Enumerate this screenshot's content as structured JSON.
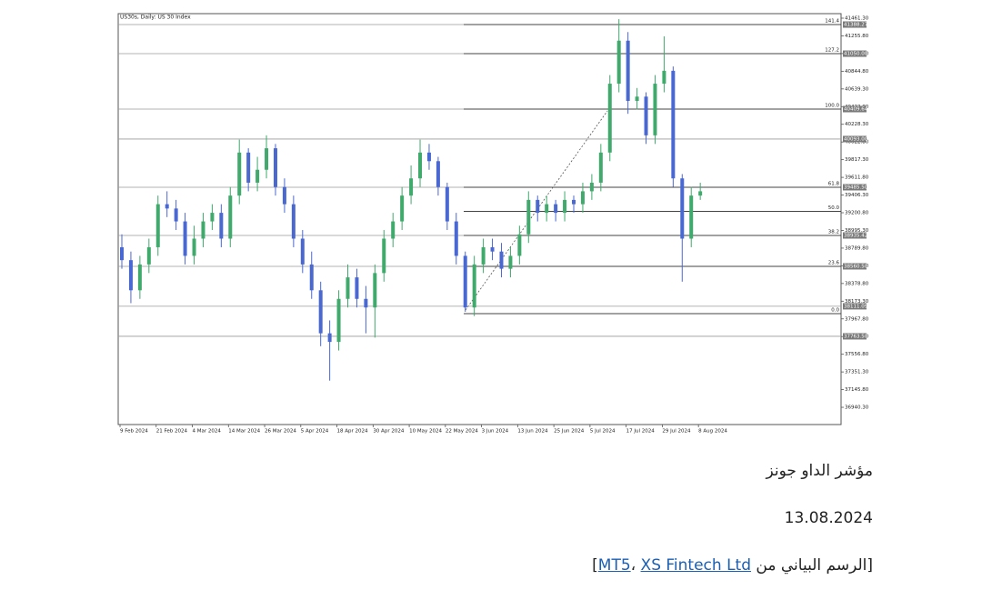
{
  "chart_data": {
    "type": "candlestick",
    "title": "US30s, Daily: US 30 Index",
    "categories": [
      "9 Feb 2024",
      null,
      null,
      null,
      "21 Feb 2024",
      null,
      null,
      null,
      "4 Mar 2024",
      null,
      null,
      null,
      "14 Mar 2024",
      null,
      null,
      null,
      "26 Mar 2024",
      null,
      null,
      null,
      "5 Apr 2024",
      null,
      null,
      null,
      "18 Apr 2024",
      null,
      null,
      null,
      "30 Apr 2024",
      null,
      null,
      null,
      "10 May 2024",
      null,
      null,
      null,
      "22 May 2024",
      null,
      null,
      null,
      "3 Jun 2024",
      null,
      null,
      null,
      "13 Jun 2024",
      null,
      null,
      null,
      "25 Jun 2024",
      null,
      null,
      null,
      "5 Jul 2024",
      null,
      null,
      null,
      "17 Jul 2024",
      null,
      null,
      null,
      "29 Jul 2024",
      null,
      null,
      null,
      "8 Aug 2024"
    ],
    "open": [
      38800,
      38650,
      38300,
      38600,
      38800,
      39300,
      39250,
      39100,
      38700,
      38900,
      39100,
      39200,
      38900,
      39400,
      39900,
      39550,
      39700,
      39950,
      39500,
      39300,
      38900,
      38600,
      38300,
      37800,
      37700,
      38200,
      38450,
      38200,
      38100,
      38500,
      38900,
      39100,
      39400,
      39600,
      39900,
      39800,
      39500,
      39100,
      38700,
      38100,
      38600,
      38800,
      38750,
      38550,
      38700,
      38950,
      39350,
      39200,
      39300,
      39200,
      39350,
      39300,
      39450,
      39550,
      39900,
      40700,
      41200,
      40500,
      40550,
      40100,
      40700,
      40850,
      39600,
      38900,
      39400
    ],
    "high": [
      38950,
      38750,
      38700,
      38900,
      39400,
      39450,
      39350,
      39200,
      39050,
      39200,
      39300,
      39300,
      39500,
      40050,
      39950,
      39850,
      40100,
      40000,
      39600,
      39400,
      39000,
      38750,
      38400,
      37950,
      38300,
      38600,
      38550,
      38350,
      38600,
      39000,
      39200,
      39500,
      39750,
      40050,
      40000,
      39850,
      39550,
      39200,
      38750,
      38700,
      38900,
      38900,
      38850,
      38800,
      39050,
      39450,
      39400,
      39400,
      39350,
      39450,
      39400,
      39550,
      39650,
      40000,
      40800,
      41450,
      41300,
      40650,
      40600,
      40800,
      41250,
      40900,
      39650,
      39500,
      39550
    ],
    "low": [
      38550,
      38150,
      38200,
      38500,
      38700,
      39150,
      39000,
      38600,
      38600,
      38800,
      39000,
      38800,
      38800,
      39300,
      39450,
      39450,
      39600,
      39400,
      39200,
      38800,
      38500,
      38200,
      37650,
      37250,
      37600,
      38100,
      38100,
      37800,
      37750,
      38400,
      38800,
      39000,
      39300,
      39500,
      39700,
      39400,
      39000,
      38600,
      38050,
      38000,
      38500,
      38650,
      38450,
      38450,
      38600,
      38850,
      39100,
      39100,
      39100,
      39100,
      39200,
      39200,
      39350,
      39450,
      39800,
      40600,
      40350,
      40400,
      40000,
      40000,
      40600,
      39500,
      38400,
      38800,
      39350
    ],
    "close": [
      38650,
      38300,
      38600,
      38800,
      39300,
      39250,
      39100,
      38700,
      38900,
      39100,
      39200,
      38900,
      39400,
      39900,
      39550,
      39700,
      39950,
      39500,
      39300,
      38900,
      38600,
      38300,
      37800,
      37700,
      38200,
      38450,
      38200,
      38100,
      38500,
      38900,
      39100,
      39400,
      39600,
      39900,
      39800,
      39500,
      39100,
      38700,
      38100,
      38600,
      38800,
      38750,
      38550,
      38700,
      38950,
      39350,
      39200,
      39300,
      39200,
      39350,
      39300,
      39450,
      39550,
      39900,
      40700,
      41200,
      40500,
      40550,
      40100,
      40700,
      40850,
      39600,
      38900,
      39400,
      39450
    ],
    "up_color": "#3faa6c",
    "down_color": "#4a68d2",
    "ylim": [
      36740,
      41514
    ],
    "yticks": [
      {
        "value": 41461.3,
        "label": "41461.30"
      },
      {
        "value": 41255.8,
        "label": "41255.80"
      },
      {
        "value": 41050.3,
        "label": "41050.30"
      },
      {
        "value": 40844.8,
        "label": "40844.80"
      },
      {
        "value": 40639.3,
        "label": "40639.30"
      },
      {
        "value": 40433.8,
        "label": "40433.80"
      },
      {
        "value": 40228.3,
        "label": "40228.30"
      },
      {
        "value": 40022.8,
        "label": "40022.80"
      },
      {
        "value": 39817.3,
        "label": "39817.30"
      },
      {
        "value": 39611.8,
        "label": "39611.80"
      },
      {
        "value": 39406.3,
        "label": "39406.30"
      },
      {
        "value": 39200.8,
        "label": "39200.80"
      },
      {
        "value": 38995.3,
        "label": "38995.30"
      },
      {
        "value": 38789.8,
        "label": "38789.80"
      },
      {
        "value": 38584.3,
        "label": "38584.30"
      },
      {
        "value": 38378.8,
        "label": "38378.80"
      },
      {
        "value": 38173.3,
        "label": "38173.30"
      },
      {
        "value": 37967.8,
        "label": "37967.80"
      },
      {
        "value": 37762.3,
        "label": "37762.30"
      },
      {
        "value": 37556.8,
        "label": "37556.80"
      },
      {
        "value": 37351.3,
        "label": "37351.30"
      },
      {
        "value": 37145.8,
        "label": "37145.80"
      },
      {
        "value": 36940.3,
        "label": "36940.30"
      }
    ],
    "levels": [
      {
        "value": 41387,
        "label": "41388.27"
      },
      {
        "value": 41049,
        "label": "41050.00"
      },
      {
        "value": 40405,
        "label": "40409.64"
      },
      {
        "value": 40057,
        "label": "40093.00"
      },
      {
        "value": 39497,
        "label": "39485.50"
      },
      {
        "value": 38937,
        "label": "38935.42"
      },
      {
        "value": 38578,
        "label": "38560.50"
      },
      {
        "value": 38114,
        "label": "38111.09"
      },
      {
        "value": 37765,
        "label": "37763.50"
      }
    ],
    "fib_levels": [
      {
        "value": 41387,
        "label": "141.4"
      },
      {
        "value": 41049,
        "label": "127.2"
      },
      {
        "value": 40405,
        "label": "100.0"
      },
      {
        "value": 39497,
        "label": "61.8"
      },
      {
        "value": 39217,
        "label": "50.0"
      },
      {
        "value": 38937,
        "label": "38.2"
      },
      {
        "value": 38578,
        "label": "23.6"
      },
      {
        "value": 38029,
        "label": "0.0"
      }
    ]
  },
  "caption": {
    "title": "مؤشر الداو جونز",
    "date": "13.08.2024",
    "source": {
      "prefix": "[الرسم البياني من ",
      "link1": "MT5",
      "sep": "، ",
      "link2": "XS Fintech Ltd",
      "suffix": "]"
    }
  }
}
